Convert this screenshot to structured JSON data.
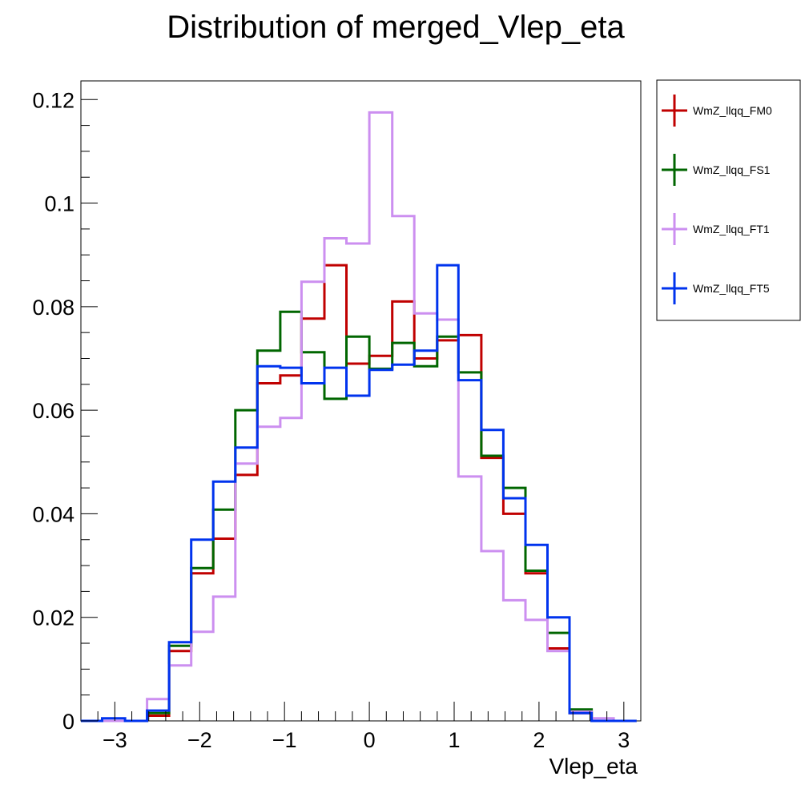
{
  "chart_data": {
    "type": "line",
    "title": "Distribution of merged_Vlep_eta",
    "xlabel": "Vlep_eta",
    "ylabel": "",
    "xlim": [
      -3.4,
      3.2
    ],
    "ylim": [
      0,
      0.1236
    ],
    "bin_edges": [
      -3.4,
      -3.15,
      -2.88,
      -2.62,
      -2.36,
      -2.1,
      -1.84,
      -1.58,
      -1.32,
      -1.05,
      -0.8,
      -0.53,
      -0.27,
      0.0,
      0.27,
      0.53,
      0.8,
      1.05,
      1.32,
      1.58,
      1.84,
      2.1,
      2.36,
      2.62,
      2.88,
      3.15
    ],
    "x_ticks": [
      -3,
      -2,
      -1,
      0,
      1,
      2,
      3
    ],
    "x_tick_labels": [
      "−3",
      "−2",
      "−1",
      "0",
      "1",
      "2",
      "3"
    ],
    "y_ticks": [
      0,
      0.02,
      0.04,
      0.06,
      0.08,
      0.1,
      0.12
    ],
    "y_tick_labels": [
      "0",
      "0.02",
      "0.04",
      "0.06",
      "0.08",
      "0.1",
      "0.12"
    ],
    "legend_position": "right, outside plot area",
    "series": [
      {
        "name": "WmZ_llqq_FM0",
        "color": "#c00000",
        "values": [
          0.0,
          0.0,
          0.0,
          0.001,
          0.0135,
          0.0285,
          0.0352,
          0.0475,
          0.0652,
          0.0667,
          0.0777,
          0.088,
          0.069,
          0.0705,
          0.081,
          0.07,
          0.0735,
          0.0745,
          0.0508,
          0.04,
          0.0285,
          0.014,
          0.0015,
          0.0,
          0.0
        ]
      },
      {
        "name": "WmZ_llqq_FS1",
        "color": "#006600",
        "values": [
          0.0,
          0.0,
          0.0,
          0.0015,
          0.0145,
          0.0295,
          0.0408,
          0.06,
          0.0715,
          0.079,
          0.0712,
          0.0622,
          0.0742,
          0.068,
          0.073,
          0.0685,
          0.0742,
          0.0673,
          0.0512,
          0.045,
          0.029,
          0.017,
          0.0022,
          0.0,
          0.0
        ]
      },
      {
        "name": "WmZ_llqq_FT1",
        "color": "#cc8ff0",
        "values": [
          0.0,
          0.0,
          0.0,
          0.0042,
          0.0107,
          0.0172,
          0.024,
          0.0497,
          0.0568,
          0.0585,
          0.0848,
          0.0932,
          0.0922,
          0.1175,
          0.0975,
          0.0787,
          0.0775,
          0.0472,
          0.0328,
          0.0233,
          0.0195,
          0.0135,
          0.0018,
          0.0005,
          0.0
        ]
      },
      {
        "name": "WmZ_llqq_FT5",
        "color": "#0033ee",
        "values": [
          0.0,
          0.0005,
          0.0,
          0.002,
          0.0152,
          0.035,
          0.0462,
          0.0528,
          0.0685,
          0.0682,
          0.0652,
          0.0682,
          0.0628,
          0.0678,
          0.0688,
          0.0715,
          0.088,
          0.0658,
          0.0562,
          0.043,
          0.034,
          0.02,
          0.0015,
          0.0,
          0.0
        ]
      }
    ]
  }
}
